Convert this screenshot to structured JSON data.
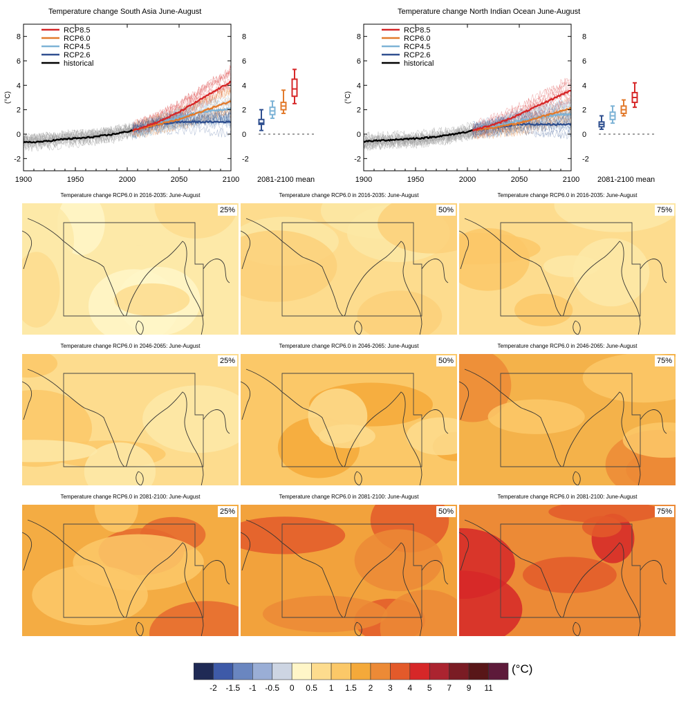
{
  "colors": {
    "rcp85": "#d62728",
    "rcp60": "#e27a2c",
    "rcp45": "#7db3d6",
    "rcp26": "#2f4f8f",
    "historical": "#000000"
  },
  "chart_data": [
    {
      "type": "line",
      "title": "Temperature change South Asia June-August",
      "ylabel": "(°C)",
      "xlabel": "",
      "xlim": [
        1900,
        2100
      ],
      "ylim": [
        -3,
        9
      ],
      "xticks": [
        "1900",
        "1950",
        "2000",
        "2050",
        "2100"
      ],
      "yticks": [
        "-2",
        "0",
        "2",
        "4",
        "6",
        "8"
      ],
      "legend": {
        "position": "top-left",
        "entries": [
          "RCP8.5",
          "RCP6.0",
          "RCP4.5",
          "RCP2.6",
          "historical"
        ]
      },
      "series": [
        {
          "name": "historical",
          "x": [
            1900,
            1920,
            1940,
            1960,
            1980,
            2000,
            2005
          ],
          "y": [
            -0.7,
            -0.6,
            -0.4,
            -0.3,
            -0.1,
            0.2,
            0.3
          ]
        },
        {
          "name": "RCP8.5",
          "x": [
            2005,
            2030,
            2050,
            2070,
            2090,
            2100
          ],
          "y": [
            0.3,
            1.0,
            1.8,
            2.8,
            3.8,
            4.3
          ]
        },
        {
          "name": "RCP6.0",
          "x": [
            2005,
            2030,
            2050,
            2070,
            2090,
            2100
          ],
          "y": [
            0.3,
            0.8,
            1.2,
            1.8,
            2.4,
            2.7
          ]
        },
        {
          "name": "RCP4.5",
          "x": [
            2005,
            2030,
            2050,
            2070,
            2090,
            2100
          ],
          "y": [
            0.3,
            0.9,
            1.4,
            1.8,
            2.0,
            2.1
          ]
        },
        {
          "name": "RCP2.6",
          "x": [
            2005,
            2030,
            2050,
            2070,
            2090,
            2100
          ],
          "y": [
            0.3,
            0.8,
            1.0,
            1.0,
            1.0,
            1.0
          ]
        }
      ],
      "boxes": {
        "label": "2081-2100 mean",
        "items": [
          {
            "name": "RCP2.6",
            "min": 0.3,
            "q1": 0.8,
            "median": 0.9,
            "q3": 1.2,
            "max": 2.0
          },
          {
            "name": "RCP4.5",
            "min": 1.3,
            "q1": 1.6,
            "median": 1.9,
            "q3": 2.2,
            "max": 2.7
          },
          {
            "name": "RCP6.0",
            "min": 1.7,
            "q1": 2.0,
            "median": 2.3,
            "q3": 2.6,
            "max": 3.6
          },
          {
            "name": "RCP8.5",
            "min": 2.5,
            "q1": 3.1,
            "median": 3.7,
            "q3": 4.5,
            "max": 5.3
          }
        ]
      }
    },
    {
      "type": "line",
      "title": "Temperature change North Indian Ocean June-August",
      "ylabel": "(°C)",
      "xlabel": "",
      "xlim": [
        1900,
        2100
      ],
      "ylim": [
        -3,
        9
      ],
      "xticks": [
        "1900",
        "1950",
        "2000",
        "2050",
        "2100"
      ],
      "yticks": [
        "-2",
        "0",
        "2",
        "4",
        "6",
        "8"
      ],
      "legend": {
        "position": "top-left",
        "entries": [
          "RCP8.5",
          "RCP6.0",
          "RCP4.5",
          "RCP2.6",
          "historical"
        ]
      },
      "series": [
        {
          "name": "historical",
          "x": [
            1900,
            1920,
            1940,
            1960,
            1980,
            2000,
            2005
          ],
          "y": [
            -0.6,
            -0.5,
            -0.4,
            -0.3,
            -0.1,
            0.2,
            0.3
          ]
        },
        {
          "name": "RCP8.5",
          "x": [
            2005,
            2030,
            2050,
            2070,
            2090,
            2100
          ],
          "y": [
            0.3,
            0.9,
            1.6,
            2.4,
            3.2,
            3.6
          ]
        },
        {
          "name": "RCP6.0",
          "x": [
            2005,
            2030,
            2050,
            2070,
            2090,
            2100
          ],
          "y": [
            0.3,
            0.6,
            0.9,
            1.4,
            1.9,
            2.1
          ]
        },
        {
          "name": "RCP4.5",
          "x": [
            2005,
            2030,
            2050,
            2070,
            2090,
            2100
          ],
          "y": [
            0.3,
            0.7,
            1.1,
            1.4,
            1.6,
            1.6
          ]
        },
        {
          "name": "RCP2.6",
          "x": [
            2005,
            2030,
            2050,
            2070,
            2090,
            2100
          ],
          "y": [
            0.3,
            0.6,
            0.8,
            0.8,
            0.8,
            0.8
          ]
        }
      ],
      "boxes": {
        "label": "2081-2100 mean",
        "items": [
          {
            "name": "RCP2.6",
            "min": 0.4,
            "q1": 0.6,
            "median": 0.8,
            "q3": 1.0,
            "max": 1.5
          },
          {
            "name": "RCP4.5",
            "min": 0.9,
            "q1": 1.2,
            "median": 1.5,
            "q3": 1.8,
            "max": 2.3
          },
          {
            "name": "RCP6.0",
            "min": 1.5,
            "q1": 1.7,
            "median": 2.0,
            "q3": 2.3,
            "max": 2.8
          },
          {
            "name": "RCP8.5",
            "min": 2.2,
            "q1": 2.6,
            "median": 3.0,
            "q3": 3.4,
            "max": 4.2
          }
        ]
      }
    },
    {
      "type": "heatmap",
      "maps": [
        {
          "title": "Temperature change RCP6.0 in 2016-2035: June-August",
          "percentile": "25%",
          "base": "#fde9a8",
          "patches": [
            "#fff6c8",
            "#fde9a8",
            "#fddc8e"
          ]
        },
        {
          "title": "Temperature change RCP6.0 in 2016-2035: June-August",
          "percentile": "50%",
          "base": "#fddc8e",
          "patches": [
            "#fce7a5",
            "#fbd07a"
          ]
        },
        {
          "title": "Temperature change RCP6.0 in 2016-2035: June-August",
          "percentile": "75%",
          "base": "#fddc8e",
          "patches": [
            "#fbc868",
            "#fde9a8"
          ]
        },
        {
          "title": "Temperature change RCP6.0 in 2046-2065: June-August",
          "percentile": "25%",
          "base": "#fddc8e",
          "patches": [
            "#fbc868",
            "#fde9a8"
          ]
        },
        {
          "title": "Temperature change RCP6.0 in 2046-2065: June-August",
          "percentile": "50%",
          "base": "#fbc868",
          "patches": [
            "#f4a93a",
            "#fddc8e"
          ]
        },
        {
          "title": "Temperature change RCP6.0 in 2046-2065: June-August",
          "percentile": "75%",
          "base": "#f4b24a",
          "patches": [
            "#ec8a36",
            "#fbc868"
          ]
        },
        {
          "title": "Temperature change RCP6.0 in 2081-2100: June-August",
          "percentile": "25%",
          "base": "#f4ac43",
          "patches": [
            "#e5692e",
            "#fbc868"
          ]
        },
        {
          "title": "Temperature change RCP6.0 in 2081-2100: June-August",
          "percentile": "50%",
          "base": "#f2a23c",
          "patches": [
            "#e35a2a",
            "#ec8a36"
          ]
        },
        {
          "title": "Temperature change RCP6.0 in 2081-2100: June-August",
          "percentile": "75%",
          "base": "#ec8a36",
          "patches": [
            "#d62728",
            "#e35a2a"
          ]
        }
      ]
    }
  ],
  "colorbar": {
    "unit": "(°C)",
    "labels": [
      "-2",
      "-1.5",
      "-1",
      "-0.5",
      "0",
      "0.5",
      "1",
      "1.5",
      "2",
      "3",
      "4",
      "5",
      "7",
      "9",
      "11"
    ],
    "colors": [
      "#1f2a55",
      "#3e5aa8",
      "#6a86c0",
      "#9aaed6",
      "#cdd5e3",
      "#fff6c8",
      "#fddc8e",
      "#fbc868",
      "#f4a93a",
      "#ec8a36",
      "#e35a2a",
      "#d62728",
      "#ab2430",
      "#7a1c24",
      "#581618",
      "#5d1a3a"
    ]
  }
}
